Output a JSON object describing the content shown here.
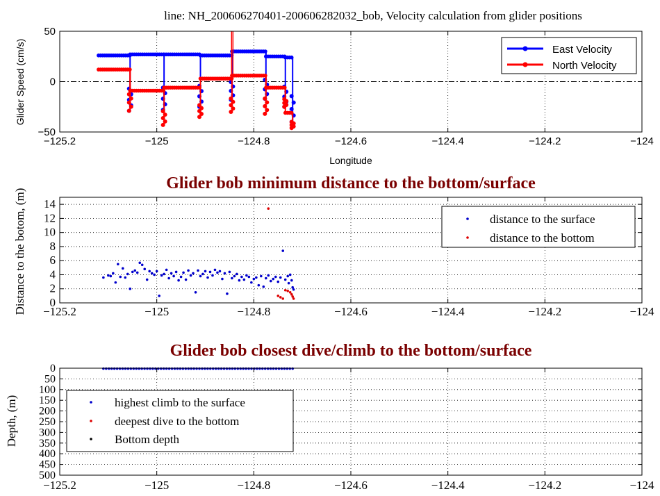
{
  "chart_data": [
    {
      "type": "line",
      "title": "line: NH_200606270401-200606282032_bob, Velocity calculation from glider positions",
      "xlabel": "Longitude",
      "ylabel": "Glider Speed (cm/s)",
      "xlim": [
        -125.2,
        -124
      ],
      "ylim": [
        -50,
        50
      ],
      "xticks": [
        "-125.2",
        "-125",
        "-124.8",
        "-124.6",
        "-124.4",
        "-124.2",
        "-124"
      ],
      "yticks": [
        "-50",
        "0",
        "50"
      ],
      "grid": "x-dotted",
      "zero_line": "dash-dot",
      "legend_position": "top-right",
      "colors": {
        "east": "#0000ff",
        "north": "#ff0000"
      },
      "series": [
        {
          "name": "East Velocity",
          "segments": [
            {
              "x": [
                -125.12,
                -125.055
              ],
              "y": [
                26,
                26
              ],
              "dip": -29
            },
            {
              "x": [
                -125.055,
                -124.985
              ],
              "y": [
                27,
                27
              ],
              "dip": -28
            },
            {
              "x": [
                -124.985,
                -124.91
              ],
              "y": [
                27,
                27
              ],
              "dip": -25
            },
            {
              "x": [
                -124.91,
                -124.845
              ],
              "y": [
                26,
                26
              ],
              "dip": -18
            },
            {
              "x": [
                -124.845,
                -124.775
              ],
              "y": [
                30,
                30
              ],
              "dip": -17
            },
            {
              "x": [
                -124.775,
                -124.735
              ],
              "y": [
                25,
                25
              ],
              "dip": -25
            },
            {
              "x": [
                -124.735,
                -124.72
              ],
              "y": [
                24,
                24
              ],
              "dip": -40
            }
          ]
        },
        {
          "name": "North Velocity",
          "segments": [
            {
              "x": [
                -125.12,
                -125.055
              ],
              "y": [
                12,
                12
              ],
              "dip": -29
            },
            {
              "x": [
                -125.055,
                -124.985
              ],
              "y": [
                -9,
                -9
              ],
              "dip": -43
            },
            {
              "x": [
                -124.985,
                -124.91
              ],
              "y": [
                -6,
                -6
              ],
              "dip": -35
            },
            {
              "x": [
                -124.91,
                -124.845
              ],
              "y": [
                3,
                3
              ],
              "dip": -30
            },
            {
              "x": [
                -124.845,
                -124.775
              ],
              "y": [
                6,
                6
              ],
              "dip": -32
            },
            {
              "x": [
                -124.775,
                -124.735
              ],
              "y": [
                -6,
                -6
              ],
              "dip": -25
            },
            {
              "x": [
                -124.735,
                -124.72
              ],
              "y": [
                -31,
                -31
              ],
              "dip": -46
            }
          ],
          "spike": {
            "x": -124.843,
            "y": 50
          }
        }
      ]
    },
    {
      "type": "scatter",
      "title": "Glider bob minimum distance to the bottom/surface",
      "xlabel": "",
      "ylabel": "Distance to the botom, (m)",
      "xlim": [
        -125.2,
        -124
      ],
      "ylim": [
        0,
        15
      ],
      "xticks": [
        "-125.2",
        "-125",
        "-124.8",
        "-124.6",
        "-124.4",
        "-124.2",
        "-124"
      ],
      "yticks": [
        "0",
        "2",
        "4",
        "6",
        "8",
        "10",
        "12",
        "14"
      ],
      "grid": "dotted",
      "legend_position": "top-right",
      "series": [
        {
          "name": "distance to the surface",
          "color": "#0000cc",
          "x": [
            -125.11,
            -125.1,
            -125.095,
            -125.09,
            -125.085,
            -125.08,
            -125.075,
            -125.07,
            -125.065,
            -125.06,
            -125.055,
            -125.05,
            -125.045,
            -125.04,
            -125.035,
            -125.03,
            -125.025,
            -125.02,
            -125.015,
            -125.01,
            -125.005,
            -125.0,
            -124.995,
            -124.99,
            -124.985,
            -124.98,
            -124.975,
            -124.97,
            -124.965,
            -124.96,
            -124.955,
            -124.95,
            -124.945,
            -124.94,
            -124.935,
            -124.93,
            -124.925,
            -124.92,
            -124.915,
            -124.91,
            -124.905,
            -124.9,
            -124.895,
            -124.89,
            -124.885,
            -124.88,
            -124.875,
            -124.87,
            -124.865,
            -124.86,
            -124.855,
            -124.85,
            -124.845,
            -124.84,
            -124.835,
            -124.83,
            -124.825,
            -124.82,
            -124.815,
            -124.81,
            -124.805,
            -124.8,
            -124.795,
            -124.79,
            -124.785,
            -124.78,
            -124.775,
            -124.77,
            -124.765,
            -124.76,
            -124.755,
            -124.75,
            -124.745,
            -124.74,
            -124.735,
            -124.73,
            -124.728,
            -124.725,
            -124.722,
            -124.72,
            -124.718
          ],
          "y": [
            3.6,
            3.9,
            3.8,
            4.2,
            2.9,
            5.5,
            3.7,
            4.9,
            3.6,
            4.1,
            2.0,
            4.4,
            4.6,
            4.3,
            5.7,
            5.4,
            4.8,
            3.3,
            4.5,
            4.2,
            4.0,
            4.5,
            1.0,
            3.9,
            4.1,
            4.7,
            3.5,
            4.2,
            3.8,
            4.4,
            3.2,
            3.7,
            4.3,
            3.3,
            4.6,
            3.9,
            4.2,
            1.5,
            4.6,
            3.8,
            4.1,
            4.5,
            3.6,
            4.4,
            3.9,
            4.7,
            4.3,
            4.5,
            3.4,
            4.2,
            1.3,
            4.4,
            3.5,
            3.8,
            4.1,
            3.2,
            3.7,
            3.3,
            3.9,
            3.7,
            2.9,
            3.4,
            3.6,
            2.5,
            3.8,
            2.3,
            3.5,
            3.9,
            3.1,
            3.4,
            3.7,
            3.0,
            3.6,
            7.4,
            3.3,
            3.8,
            2.8,
            4.0,
            3.2,
            2.2,
            1.9
          ]
        },
        {
          "name": "distance to the bottom",
          "color": "#dd0000",
          "x": [
            -124.77,
            -124.75,
            -124.745,
            -124.74,
            -124.735,
            -124.73,
            -124.725,
            -124.722,
            -124.72,
            -124.718
          ],
          "y": [
            13.4,
            1.0,
            0.8,
            0.6,
            1.8,
            1.7,
            1.5,
            1.2,
            0.9,
            0.6
          ]
        }
      ]
    },
    {
      "type": "scatter",
      "title": "Glider bob closest dive/climb to the bottom/surface",
      "xlabel": "",
      "ylabel": "Depth, (m)",
      "xlim": [
        -125.2,
        -124
      ],
      "ylim": [
        500,
        0
      ],
      "reversed_y": true,
      "xticks": [
        "-125.2",
        "-125",
        "-124.8",
        "-124.6",
        "-124.4",
        "-124.2",
        "-124"
      ],
      "yticks": [
        "0",
        "50",
        "100",
        "150",
        "200",
        "250",
        "300",
        "350",
        "400",
        "450",
        "500"
      ],
      "grid": "dotted",
      "legend_position": "bottom-left",
      "series": [
        {
          "name": "highest climb to the surface",
          "color": "#0000cc",
          "x_range": [
            -125.11,
            -124.72
          ],
          "count": 70,
          "depth": 2
        },
        {
          "name": "deepest dive to the bottom",
          "color": "#dd0000",
          "x": [],
          "y": []
        },
        {
          "name": "Bottom depth",
          "color": "#000000",
          "x": [],
          "y": []
        }
      ]
    }
  ]
}
